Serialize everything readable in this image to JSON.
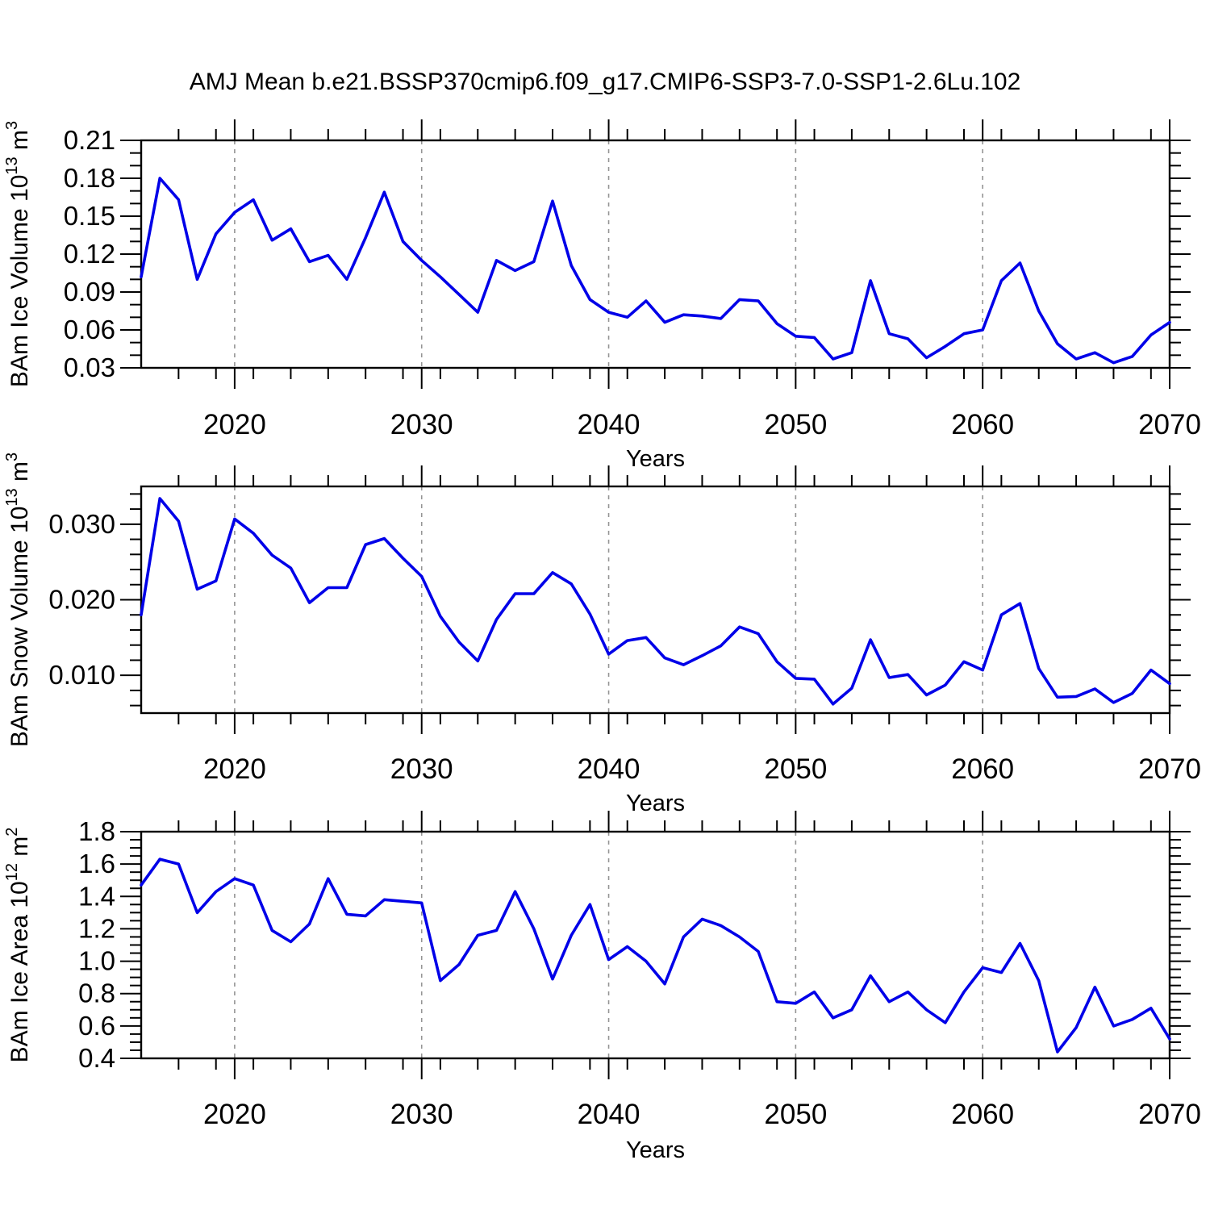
{
  "title": "AMJ Mean b.e21.BSSP370cmip6.f09_g17.CMIP6-SSP3-7.0-SSP1-2.6Lu.102",
  "chart_data": {
    "type": "line",
    "title": "AMJ Mean b.e21.BSSP370cmip6.f09_g17.CMIP6-SSP3-7.0-SSP1-2.6Lu.102",
    "xlabel": "Years",
    "line_color": "#0000e8",
    "axis_color": "#000000",
    "grid_color": "#949494",
    "legend": "none",
    "grid": "vertical-dashed-decades",
    "x_axis": {
      "start": 2015,
      "end": 2070,
      "major_ticks": [
        2020,
        2030,
        2040,
        2050,
        2060,
        2070
      ],
      "minor_tick_step": 2,
      "gridline_years": [
        2020,
        2030,
        2040,
        2050,
        2060
      ]
    },
    "years": [
      2015,
      2016,
      2017,
      2018,
      2019,
      2020,
      2021,
      2022,
      2023,
      2024,
      2025,
      2026,
      2027,
      2028,
      2029,
      2030,
      2031,
      2032,
      2033,
      2034,
      2035,
      2036,
      2037,
      2038,
      2039,
      2040,
      2041,
      2042,
      2043,
      2044,
      2045,
      2046,
      2047,
      2048,
      2049,
      2050,
      2051,
      2052,
      2053,
      2054,
      2055,
      2056,
      2057,
      2058,
      2059,
      2060,
      2061,
      2062,
      2063,
      2064,
      2065,
      2066,
      2067,
      2068,
      2069,
      2070
    ],
    "panels": [
      {
        "id": "ice-volume",
        "ylabel_plain": "BAm Ice Volume 10^13 m^3",
        "ylabel_segments": [
          {
            "text": "BAm Ice Volume 10",
            "sup": false
          },
          {
            "text": "13",
            "sup": true
          },
          {
            "text": " m",
            "sup": false
          },
          {
            "text": "3",
            "sup": true
          }
        ],
        "ylim": [
          0.03,
          0.21
        ],
        "yticks": [
          {
            "v": 0.03,
            "label": "0.03"
          },
          {
            "v": 0.06,
            "label": "0.06"
          },
          {
            "v": 0.09,
            "label": "0.09"
          },
          {
            "v": 0.12,
            "label": "0.12"
          },
          {
            "v": 0.15,
            "label": "0.15"
          },
          {
            "v": 0.18,
            "label": "0.18"
          },
          {
            "v": 0.21,
            "label": "0.21"
          }
        ],
        "y_minor_step": 0.01,
        "values": [
          0.102,
          0.18,
          0.163,
          0.1,
          0.136,
          0.153,
          0.163,
          0.131,
          0.14,
          0.114,
          0.119,
          0.1,
          0.133,
          0.169,
          0.13,
          0.115,
          0.102,
          0.088,
          0.074,
          0.115,
          0.107,
          0.114,
          0.162,
          0.111,
          0.084,
          0.074,
          0.07,
          0.083,
          0.066,
          0.072,
          0.071,
          0.069,
          0.084,
          0.083,
          0.065,
          0.055,
          0.054,
          0.037,
          0.042,
          0.099,
          0.057,
          0.053,
          0.038,
          0.047,
          0.057,
          0.06,
          0.099,
          0.113,
          0.075,
          0.049,
          0.037,
          0.042,
          0.034,
          0.039,
          0.056,
          0.066
        ]
      },
      {
        "id": "snow-volume",
        "ylabel_plain": "BAm Snow Volume 10^13 m^3",
        "ylabel_segments": [
          {
            "text": "BAm Snow Volume 10",
            "sup": false
          },
          {
            "text": "13",
            "sup": true
          },
          {
            "text": " m",
            "sup": false
          },
          {
            "text": "3",
            "sup": true
          }
        ],
        "ylim": [
          0.005,
          0.035
        ],
        "yticks": [
          {
            "v": 0.01,
            "label": "0.010"
          },
          {
            "v": 0.02,
            "label": "0.020"
          },
          {
            "v": 0.03,
            "label": "0.030"
          }
        ],
        "y_minor_step": 0.002,
        "values": [
          0.018,
          0.0334,
          0.0304,
          0.0214,
          0.0225,
          0.0307,
          0.0288,
          0.0259,
          0.0242,
          0.0196,
          0.0216,
          0.0216,
          0.0273,
          0.0281,
          0.0255,
          0.0231,
          0.0178,
          0.0144,
          0.0119,
          0.0174,
          0.0208,
          0.0208,
          0.0236,
          0.0221,
          0.0181,
          0.0128,
          0.0146,
          0.015,
          0.0123,
          0.0114,
          0.0126,
          0.0139,
          0.0164,
          0.0155,
          0.0118,
          0.0096,
          0.0095,
          0.0062,
          0.0083,
          0.0147,
          0.0097,
          0.0101,
          0.0074,
          0.0087,
          0.0118,
          0.0107,
          0.018,
          0.0195,
          0.0109,
          0.0071,
          0.0072,
          0.0082,
          0.0064,
          0.0076,
          0.0107,
          0.0089
        ]
      },
      {
        "id": "ice-area",
        "ylabel_plain": "BAm Ice Area 10^12 m^2",
        "ylabel_segments": [
          {
            "text": "BAm Ice Area 10",
            "sup": false
          },
          {
            "text": "12",
            "sup": true
          },
          {
            "text": " m",
            "sup": false
          },
          {
            "text": "2",
            "sup": true
          }
        ],
        "ylim": [
          0.4,
          1.8
        ],
        "yticks": [
          {
            "v": 0.4,
            "label": "0.4"
          },
          {
            "v": 0.6,
            "label": "0.6"
          },
          {
            "v": 0.8,
            "label": "0.8"
          },
          {
            "v": 1.0,
            "label": "1.0"
          },
          {
            "v": 1.2,
            "label": "1.2"
          },
          {
            "v": 1.4,
            "label": "1.4"
          },
          {
            "v": 1.6,
            "label": "1.6"
          },
          {
            "v": 1.8,
            "label": "1.8"
          }
        ],
        "y_minor_step": 0.05,
        "values": [
          1.47,
          1.63,
          1.6,
          1.3,
          1.43,
          1.51,
          1.47,
          1.19,
          1.12,
          1.23,
          1.51,
          1.29,
          1.28,
          1.38,
          1.37,
          1.36,
          0.88,
          0.98,
          1.16,
          1.19,
          1.43,
          1.2,
          0.89,
          1.16,
          1.35,
          1.01,
          1.09,
          1.0,
          0.86,
          1.15,
          1.26,
          1.22,
          1.15,
          1.06,
          0.75,
          0.74,
          0.81,
          0.65,
          0.7,
          0.91,
          0.75,
          0.81,
          0.7,
          0.62,
          0.81,
          0.96,
          0.93,
          1.11,
          0.88,
          0.44,
          0.59,
          0.84,
          0.6,
          0.64,
          0.71,
          0.52
        ]
      }
    ]
  }
}
